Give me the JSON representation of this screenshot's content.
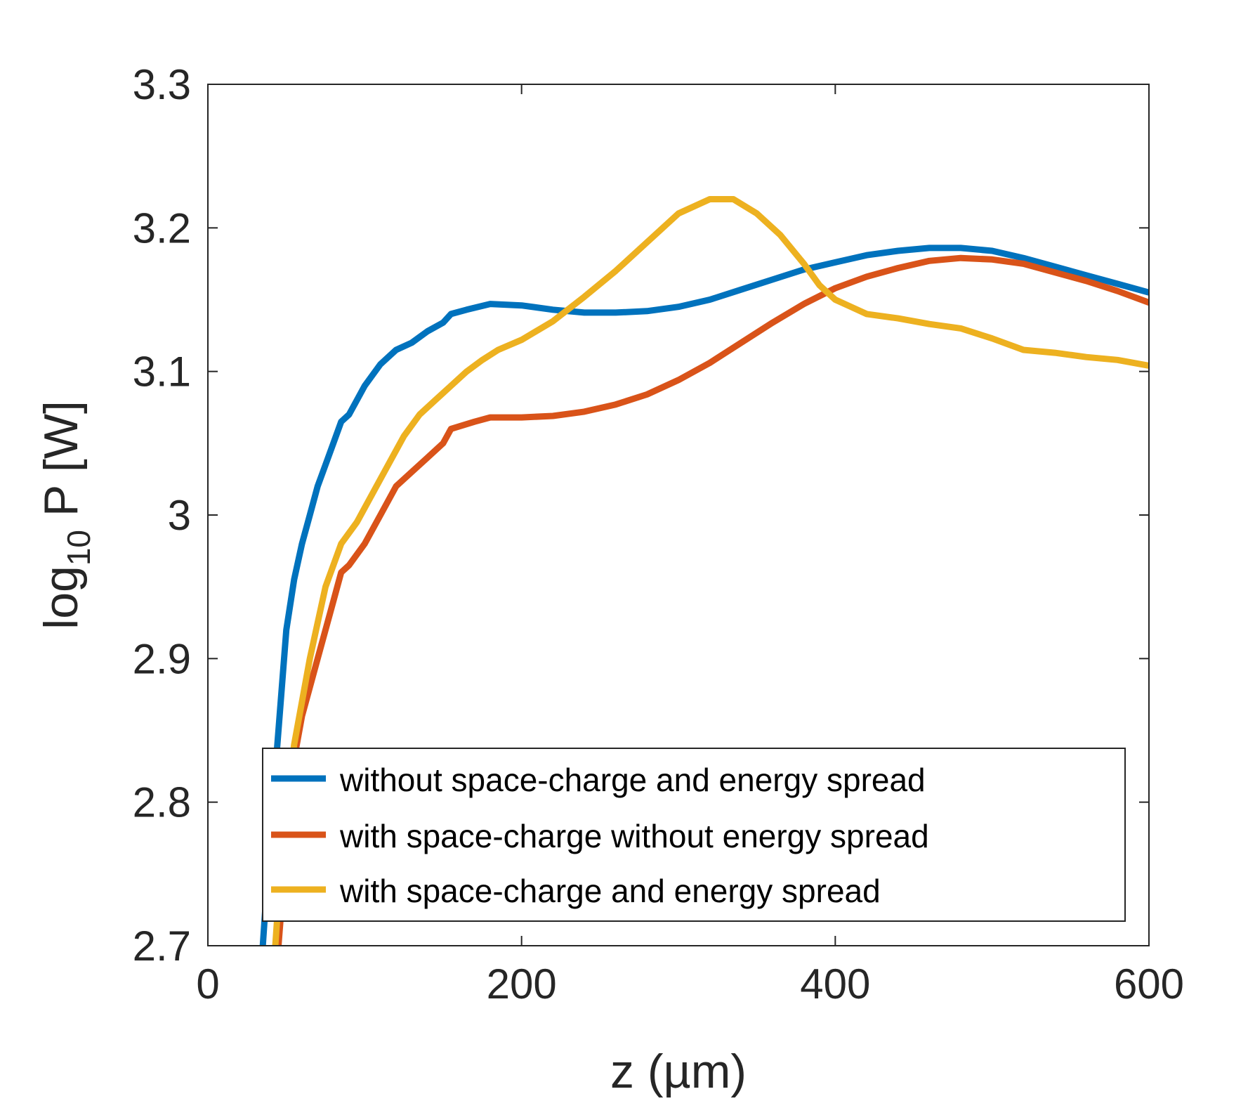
{
  "chart_data": {
    "type": "line",
    "xlabel": "z (µm)",
    "ylabel": {
      "base": "log",
      "subscript": "10",
      "rest": " P [W]"
    },
    "xlim": [
      0,
      600
    ],
    "ylim": [
      2.7,
      3.3
    ],
    "xticks": [
      "0",
      "200",
      "400",
      "600"
    ],
    "yticks": [
      "2.7",
      "2.8",
      "2.9",
      "3",
      "3.1",
      "3.2",
      "3.3"
    ],
    "grid": false,
    "legend_position": "bottom-center",
    "series": [
      {
        "name": "without space-charge and energy spread",
        "color": "#0072BD",
        "points": [
          [
            35,
            2.7
          ],
          [
            40,
            2.78
          ],
          [
            45,
            2.85
          ],
          [
            50,
            2.92
          ],
          [
            55,
            2.955
          ],
          [
            60,
            2.98
          ],
          [
            65,
            3.0
          ],
          [
            70,
            3.02
          ],
          [
            75,
            3.035
          ],
          [
            80,
            3.05
          ],
          [
            85,
            3.065
          ],
          [
            90,
            3.07
          ],
          [
            95,
            3.08
          ],
          [
            100,
            3.09
          ],
          [
            110,
            3.105
          ],
          [
            120,
            3.115
          ],
          [
            130,
            3.12
          ],
          [
            140,
            3.128
          ],
          [
            150,
            3.134
          ],
          [
            155,
            3.14
          ],
          [
            165,
            3.143
          ],
          [
            180,
            3.147
          ],
          [
            200,
            3.146
          ],
          [
            220,
            3.143
          ],
          [
            240,
            3.141
          ],
          [
            260,
            3.141
          ],
          [
            280,
            3.142
          ],
          [
            300,
            3.145
          ],
          [
            320,
            3.15
          ],
          [
            340,
            3.157
          ],
          [
            360,
            3.164
          ],
          [
            380,
            3.171
          ],
          [
            400,
            3.176
          ],
          [
            420,
            3.181
          ],
          [
            440,
            3.184
          ],
          [
            460,
            3.186
          ],
          [
            480,
            3.186
          ],
          [
            500,
            3.184
          ],
          [
            520,
            3.179
          ],
          [
            540,
            3.173
          ],
          [
            560,
            3.167
          ],
          [
            580,
            3.161
          ],
          [
            600,
            3.155
          ]
        ]
      },
      {
        "name": "with space-charge without energy spread",
        "color": "#D95319",
        "points": [
          [
            45,
            2.7
          ],
          [
            50,
            2.77
          ],
          [
            55,
            2.83
          ],
          [
            60,
            2.86
          ],
          [
            70,
            2.9
          ],
          [
            80,
            2.94
          ],
          [
            85,
            2.96
          ],
          [
            90,
            2.965
          ],
          [
            100,
            2.98
          ],
          [
            110,
            3.0
          ],
          [
            120,
            3.02
          ],
          [
            130,
            3.03
          ],
          [
            140,
            3.04
          ],
          [
            150,
            3.05
          ],
          [
            155,
            3.06
          ],
          [
            170,
            3.065
          ],
          [
            180,
            3.068
          ],
          [
            200,
            3.068
          ],
          [
            220,
            3.069
          ],
          [
            240,
            3.072
          ],
          [
            260,
            3.077
          ],
          [
            280,
            3.084
          ],
          [
            300,
            3.094
          ],
          [
            320,
            3.106
          ],
          [
            340,
            3.12
          ],
          [
            360,
            3.134
          ],
          [
            380,
            3.147
          ],
          [
            400,
            3.158
          ],
          [
            420,
            3.166
          ],
          [
            440,
            3.172
          ],
          [
            460,
            3.177
          ],
          [
            480,
            3.179
          ],
          [
            500,
            3.178
          ],
          [
            520,
            3.175
          ],
          [
            540,
            3.169
          ],
          [
            560,
            3.163
          ],
          [
            580,
            3.156
          ],
          [
            600,
            3.148
          ]
        ]
      },
      {
        "name": "with space-charge and energy spread",
        "color": "#EDB120",
        "points": [
          [
            43,
            2.7
          ],
          [
            48,
            2.78
          ],
          [
            55,
            2.84
          ],
          [
            60,
            2.87
          ],
          [
            65,
            2.9
          ],
          [
            70,
            2.925
          ],
          [
            75,
            2.95
          ],
          [
            85,
            2.98
          ],
          [
            95,
            2.995
          ],
          [
            105,
            3.015
          ],
          [
            115,
            3.035
          ],
          [
            125,
            3.055
          ],
          [
            135,
            3.07
          ],
          [
            145,
            3.08
          ],
          [
            155,
            3.09
          ],
          [
            165,
            3.1
          ],
          [
            175,
            3.108
          ],
          [
            185,
            3.115
          ],
          [
            200,
            3.122
          ],
          [
            220,
            3.135
          ],
          [
            240,
            3.152
          ],
          [
            260,
            3.17
          ],
          [
            280,
            3.19
          ],
          [
            300,
            3.21
          ],
          [
            320,
            3.22
          ],
          [
            335,
            3.22
          ],
          [
            350,
            3.21
          ],
          [
            365,
            3.195
          ],
          [
            380,
            3.175
          ],
          [
            390,
            3.16
          ],
          [
            400,
            3.15
          ],
          [
            410,
            3.145
          ],
          [
            420,
            3.14
          ],
          [
            440,
            3.137
          ],
          [
            460,
            3.133
          ],
          [
            480,
            3.13
          ],
          [
            500,
            3.123
          ],
          [
            520,
            3.115
          ],
          [
            540,
            3.113
          ],
          [
            560,
            3.11
          ],
          [
            580,
            3.108
          ],
          [
            600,
            3.104
          ]
        ]
      }
    ]
  }
}
